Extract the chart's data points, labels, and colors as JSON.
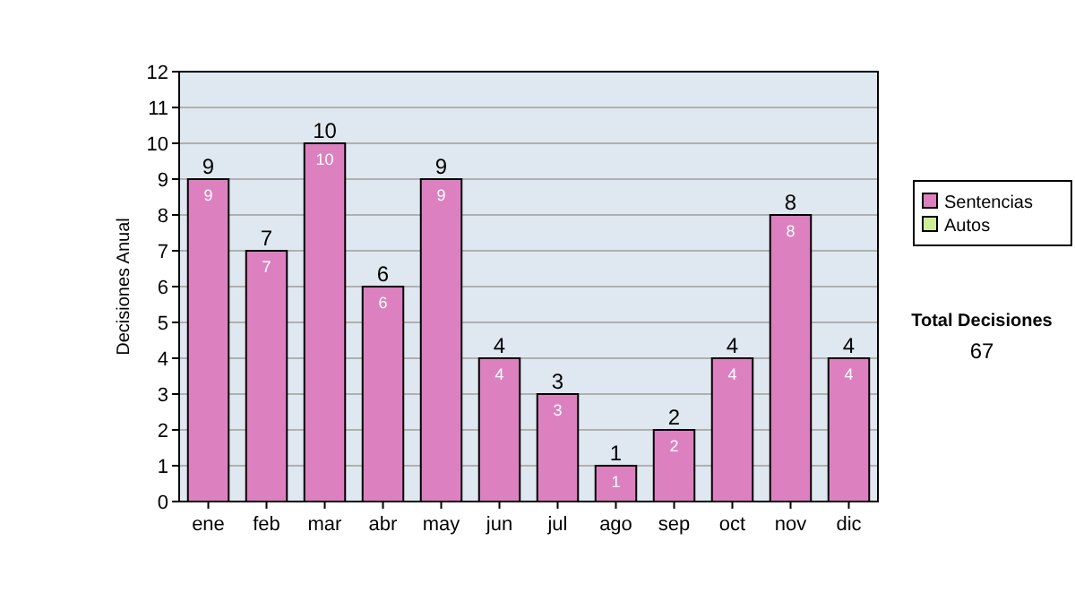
{
  "chart_data": {
    "type": "bar",
    "stacked": true,
    "ylabel": "Decisiones Anual",
    "categories": [
      "ene",
      "feb",
      "mar",
      "abr",
      "may",
      "jun",
      "jul",
      "ago",
      "sep",
      "oct",
      "nov",
      "dic"
    ],
    "series": [
      {
        "name": "Sentencias",
        "color": "#dd80c0",
        "values": [
          9,
          7,
          10,
          6,
          9,
          4,
          3,
          1,
          2,
          4,
          8,
          4
        ],
        "value_labels": [
          "9",
          "7",
          "10",
          "6",
          "9",
          "4",
          "3",
          "1",
          "2",
          "4",
          "8",
          "4"
        ]
      },
      {
        "name": "Autos",
        "color": "#ccee99",
        "values": [
          0,
          0,
          0,
          0,
          0,
          0,
          0,
          0,
          0,
          0,
          0,
          0
        ]
      }
    ],
    "totals": [
      "9",
      "7",
      "10",
      "6",
      "9",
      "4",
      "3",
      "1",
      "2",
      "4",
      "8",
      "4"
    ],
    "ylim": [
      0,
      12
    ],
    "yticks": [
      0,
      1,
      2,
      3,
      4,
      5,
      6,
      7,
      8,
      9,
      10,
      11,
      12
    ],
    "grid": "y",
    "legend": "right",
    "annotations": [
      "Total Decisiones",
      "67"
    ]
  }
}
